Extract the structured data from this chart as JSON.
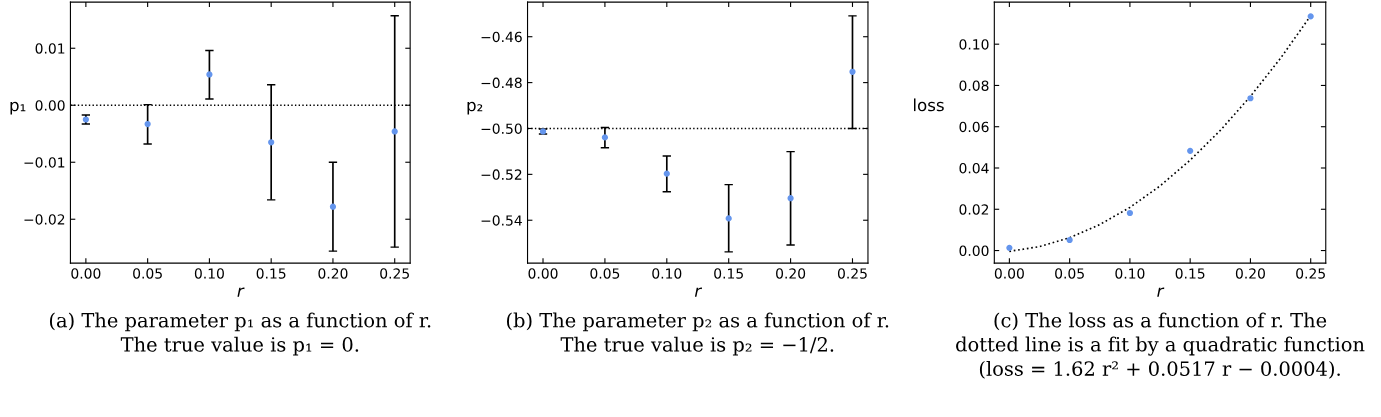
{
  "chart_data": [
    {
      "type": "scatter",
      "x": [
        0,
        0.05,
        0.1,
        0.15,
        0.2,
        0.25
      ],
      "color": "#6495ed",
      "marker": "circle",
      "values": [
        -0.0025,
        -0.0033,
        0.0054,
        -0.0065,
        -0.0178,
        -0.0046
      ],
      "errors": [
        [
          -0.0033,
          -0.0017
        ],
        [
          -0.0068,
          0.0001
        ],
        [
          0.0011,
          0.0096
        ],
        [
          -0.0166,
          0.0036
        ],
        [
          -0.0256,
          -0.01
        ],
        [
          -0.0249,
          0.0157
        ]
      ],
      "xlim": [
        -0.0125,
        0.2625
      ],
      "ylim": [
        -0.0277,
        0.0181
      ],
      "xticks": [
        {
          "value": 0,
          "label": "0.00"
        },
        {
          "value": 0.05,
          "label": "0.05"
        },
        {
          "value": 0.1,
          "label": "0.10"
        },
        {
          "value": 0.15,
          "label": "0.15"
        },
        {
          "value": 0.2,
          "label": "0.20"
        },
        {
          "value": 0.25,
          "label": "0.25"
        }
      ],
      "yticks": [
        {
          "value": -0.02,
          "label": "−0.02"
        },
        {
          "value": -0.01,
          "label": "−0.01"
        },
        {
          "value": 0,
          "label": "0.00"
        },
        {
          "value": 0.01,
          "label": "0.01"
        }
      ],
      "xlabel": "r",
      "ylabel": "p₁",
      "ref_lines": [
        {
          "axis": "y",
          "value": 0,
          "color": "#000000",
          "line_style": "dotted"
        }
      ],
      "annotations": [
        "(a) The parameter p₁ as a function of r.",
        "The true value is p₁ = 0."
      ]
    },
    {
      "type": "scatter",
      "x": [
        0,
        0.05,
        0.1,
        0.15,
        0.2,
        0.25
      ],
      "color": "#6495ed",
      "marker": "circle",
      "values": [
        -0.5013,
        -0.5039,
        -0.5197,
        -0.5392,
        -0.5304,
        -0.4753
      ],
      "errors": [
        [
          -0.5024,
          -0.5002
        ],
        [
          -0.5084,
          -0.4996
        ],
        [
          -0.5276,
          -0.512
        ],
        [
          -0.5538,
          -0.5245
        ],
        [
          -0.5508,
          -0.5101
        ],
        [
          -0.5,
          -0.4509
        ]
      ],
      "xlim": [
        -0.0125,
        0.2625
      ],
      "ylim": [
        -0.5587,
        -0.4449
      ],
      "xticks": [
        {
          "value": 0,
          "label": "0.00"
        },
        {
          "value": 0.05,
          "label": "0.05"
        },
        {
          "value": 0.1,
          "label": "0.10"
        },
        {
          "value": 0.15,
          "label": "0.15"
        },
        {
          "value": 0.2,
          "label": "0.20"
        },
        {
          "value": 0.25,
          "label": "0.25"
        }
      ],
      "yticks": [
        {
          "value": -0.54,
          "label": "−0.54"
        },
        {
          "value": -0.52,
          "label": "−0.52"
        },
        {
          "value": -0.5,
          "label": "−0.50"
        },
        {
          "value": -0.48,
          "label": "−0.48"
        },
        {
          "value": -0.46,
          "label": "−0.46"
        }
      ],
      "xlabel": "r",
      "ylabel": "p₂",
      "ref_lines": [
        {
          "axis": "y",
          "value": -0.5,
          "color": "#000000",
          "line_style": "dotted"
        }
      ],
      "annotations": [
        "(b) The parameter p₂ as a function of r.",
        "The true value is p₂ = −1/2."
      ]
    },
    {
      "type": "scatter",
      "x": [
        0,
        0.05,
        0.1,
        0.15,
        0.2,
        0.25
      ],
      "series": [
        {
          "type": "scatter",
          "color": "#6495ed",
          "marker": "circle",
          "values": [
            0.0013,
            0.0051,
            0.0182,
            0.0483,
            0.0738,
            0.1135
          ]
        },
        {
          "type": "line",
          "color": "#000000",
          "line_style": "dotted",
          "marker": "none",
          "x": [
            0,
            0.025,
            0.05,
            0.075,
            0.1,
            0.125,
            0.15,
            0.175,
            0.2,
            0.225,
            0.25
          ],
          "values": [
            -0.0004,
            0.0019,
            0.0062,
            0.0126,
            0.0209,
            0.0313,
            0.0438,
            0.0582,
            0.0747,
            0.0932,
            0.1138
          ]
        }
      ],
      "xlim": [
        -0.0125,
        0.2625
      ],
      "ylim": [
        -0.0061,
        0.1204
      ],
      "xticks": [
        {
          "value": 0,
          "label": "0.00"
        },
        {
          "value": 0.05,
          "label": "0.05"
        },
        {
          "value": 0.1,
          "label": "0.10"
        },
        {
          "value": 0.15,
          "label": "0.15"
        },
        {
          "value": 0.2,
          "label": "0.20"
        },
        {
          "value": 0.25,
          "label": "0.25"
        }
      ],
      "yticks": [
        {
          "value": 0,
          "label": "0.00"
        },
        {
          "value": 0.02,
          "label": "0.02"
        },
        {
          "value": 0.04,
          "label": "0.04"
        },
        {
          "value": 0.06,
          "label": "0.06"
        },
        {
          "value": 0.08,
          "label": "0.08"
        },
        {
          "value": 0.1,
          "label": "0.10"
        }
      ],
      "xlabel": "r",
      "ylabel": "loss",
      "annotations": [
        "(c) The loss as a function of r. The",
        "dotted line is a fit by a quadratic function",
        "(loss = 1.62 r² + 0.0517 r − 0.0004)."
      ]
    }
  ]
}
